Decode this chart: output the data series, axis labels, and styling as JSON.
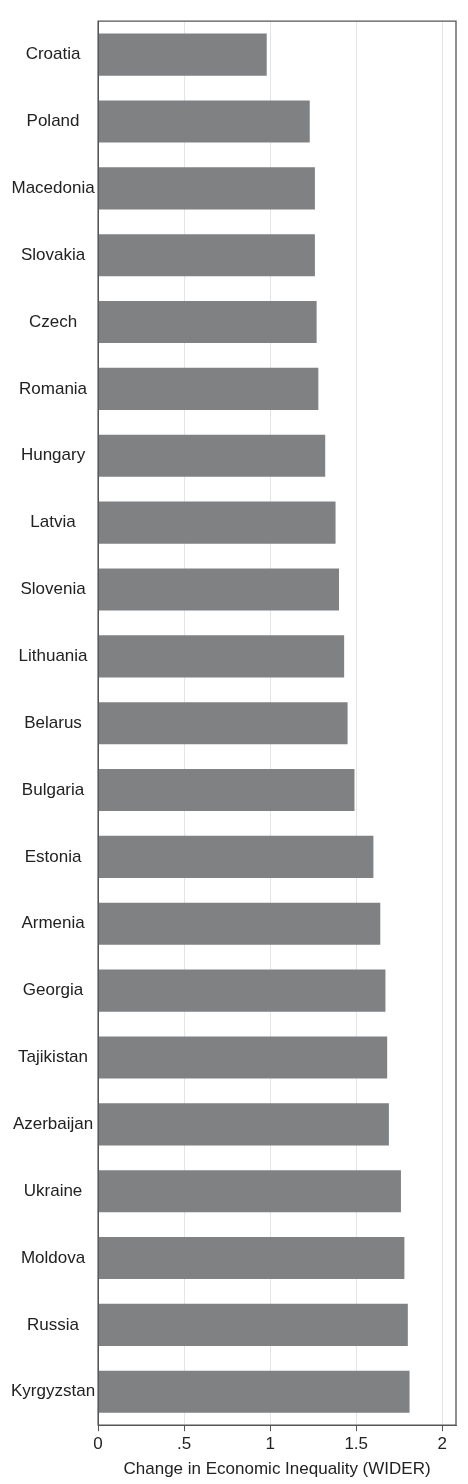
{
  "chart_data": {
    "type": "bar",
    "orientation": "horizontal",
    "xlabel": "Change in Economic Inequality (WIDER)",
    "categories": [
      "Croatia",
      "Poland",
      "Macedonia",
      "Slovakia",
      "Czech",
      "Romania",
      "Hungary",
      "Latvia",
      "Slovenia",
      "Lithuania",
      "Belarus",
      "Bulgaria",
      "Estonia",
      "Armenia",
      "Georgia",
      "Tajikistan",
      "Azerbaijan",
      "Ukraine",
      "Moldova",
      "Russia",
      "Kyrgyzstan"
    ],
    "values": [
      0.98,
      1.23,
      1.26,
      1.26,
      1.27,
      1.28,
      1.32,
      1.38,
      1.4,
      1.43,
      1.45,
      1.49,
      1.6,
      1.64,
      1.67,
      1.68,
      1.69,
      1.76,
      1.78,
      1.8,
      1.81
    ],
    "color": "#7f8183",
    "xlim": [
      0,
      2.08
    ],
    "xticks": [
      0,
      {
        "value": 0.5,
        "label": ".5"
      },
      1,
      1.5,
      2
    ],
    "grid": "x"
  }
}
